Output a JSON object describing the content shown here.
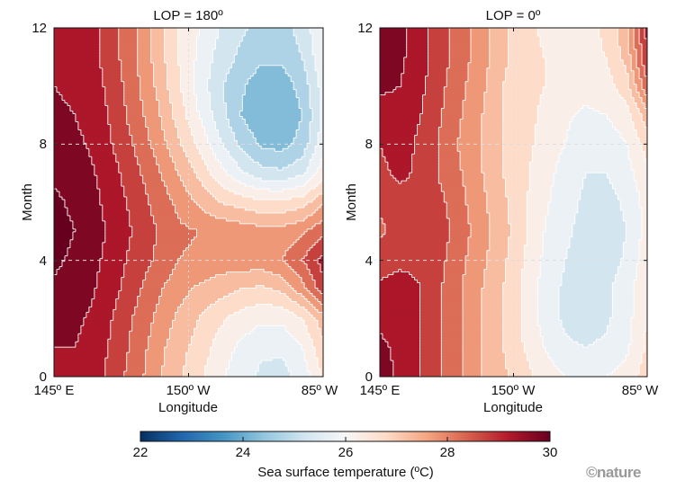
{
  "chart_data": [
    {
      "type": "heatmap",
      "subtype": "filled-contour",
      "title": "LOP = 180º",
      "xlabel": "Longitude",
      "ylabel": "Month",
      "x": [
        145,
        155,
        165,
        175,
        185,
        195,
        205,
        215,
        225,
        235,
        245,
        255,
        265,
        275
      ],
      "y": [
        0,
        1,
        2,
        3,
        4,
        5,
        6,
        7,
        8,
        9,
        10,
        11,
        12
      ],
      "xticks": [
        {
          "value": 145,
          "label": "145º E"
        },
        {
          "value": 210,
          "label": "150º W"
        },
        {
          "value": 275,
          "label": "85º W"
        }
      ],
      "yticks": [
        {
          "value": 0,
          "label": "0"
        },
        {
          "value": 4,
          "label": "4"
        },
        {
          "value": 8,
          "label": "8"
        },
        {
          "value": 12,
          "label": "12"
        }
      ],
      "z": [
        [
          29.4,
          29.4,
          29.2,
          28.7,
          28.2,
          27.6,
          27.1,
          26.6,
          26.1,
          25.7,
          25.4,
          25.3,
          25.7,
          26.6
        ],
        [
          29.5,
          29.5,
          29.3,
          28.8,
          28.3,
          27.7,
          27.2,
          26.8,
          26.3,
          25.9,
          25.6,
          25.6,
          26.0,
          26.9
        ],
        [
          29.7,
          29.6,
          29.4,
          28.9,
          28.4,
          27.9,
          27.4,
          27.0,
          26.6,
          26.3,
          26.1,
          26.1,
          26.5,
          27.3
        ],
        [
          29.9,
          29.8,
          29.5,
          29.1,
          28.6,
          28.1,
          27.7,
          27.4,
          27.2,
          27.0,
          26.9,
          27.1,
          27.8,
          28.8
        ],
        [
          30.1,
          29.9,
          29.6,
          29.2,
          28.8,
          28.4,
          28.0,
          27.9,
          27.8,
          27.8,
          27.8,
          28.0,
          28.5,
          29.2
        ],
        [
          30.2,
          30.0,
          29.7,
          29.3,
          28.9,
          28.5,
          28.1,
          28.0,
          27.9,
          27.8,
          27.7,
          27.7,
          27.9,
          28.4
        ],
        [
          30.1,
          29.9,
          29.6,
          29.2,
          28.8,
          28.3,
          27.9,
          27.4,
          27.0,
          26.8,
          26.6,
          26.6,
          26.8,
          27.4
        ],
        [
          29.9,
          29.8,
          29.5,
          29.1,
          28.6,
          28.1,
          27.5,
          26.9,
          26.2,
          25.6,
          25.2,
          25.1,
          25.4,
          26.3
        ],
        [
          29.7,
          29.6,
          29.4,
          28.9,
          28.4,
          27.8,
          27.1,
          26.4,
          25.6,
          24.9,
          24.4,
          24.3,
          24.7,
          25.8
        ],
        [
          29.6,
          29.5,
          29.3,
          28.8,
          28.2,
          27.6,
          26.8,
          26.0,
          25.2,
          24.5,
          24.1,
          24.0,
          24.5,
          25.6
        ],
        [
          29.5,
          29.4,
          29.2,
          28.7,
          28.1,
          27.4,
          26.6,
          25.8,
          25.1,
          24.6,
          24.2,
          24.2,
          24.7,
          25.7
        ],
        [
          29.3,
          29.3,
          29.1,
          28.6,
          28.0,
          27.3,
          26.5,
          25.9,
          25.3,
          24.9,
          24.6,
          24.6,
          25.0,
          25.9
        ],
        [
          29.3,
          29.3,
          29.1,
          28.6,
          28.0,
          27.3,
          26.5,
          26.0,
          25.5,
          25.1,
          24.8,
          24.8,
          25.2,
          26.0
        ]
      ]
    },
    {
      "type": "heatmap",
      "subtype": "filled-contour",
      "title": "LOP = 0º",
      "xlabel": "Longitude",
      "ylabel": "Month",
      "x": [
        145,
        155,
        165,
        175,
        185,
        195,
        205,
        215,
        225,
        235,
        245,
        255,
        265,
        275
      ],
      "y": [
        0,
        1,
        2,
        3,
        4,
        5,
        6,
        7,
        8,
        9,
        10,
        11,
        12
      ],
      "xticks": [
        {
          "value": 145,
          "label": "145º E"
        },
        {
          "value": 210,
          "label": "150º W"
        },
        {
          "value": 275,
          "label": "85º W"
        }
      ],
      "yticks": [
        {
          "value": 0,
          "label": "0"
        },
        {
          "value": 4,
          "label": "4"
        },
        {
          "value": 8,
          "label": "8"
        },
        {
          "value": 12,
          "label": "12"
        }
      ],
      "z": [
        [
          29.7,
          29.4,
          29.0,
          28.5,
          28.0,
          27.5,
          27.1,
          26.7,
          26.3,
          26.0,
          25.9,
          26.0,
          26.2,
          26.8
        ],
        [
          29.6,
          29.4,
          29.0,
          28.5,
          28.0,
          27.5,
          27.0,
          26.5,
          26.0,
          25.6,
          25.5,
          25.6,
          25.9,
          26.6
        ],
        [
          29.4,
          29.3,
          29.0,
          28.5,
          28.0,
          27.5,
          27.0,
          26.4,
          25.8,
          25.4,
          25.2,
          25.4,
          25.8,
          26.5
        ],
        [
          29.1,
          29.2,
          29.0,
          28.5,
          28.0,
          27.5,
          27.0,
          26.4,
          25.8,
          25.4,
          25.3,
          25.4,
          25.8,
          26.4
        ],
        [
          28.8,
          28.9,
          28.9,
          28.6,
          28.1,
          27.6,
          27.1,
          26.5,
          25.9,
          25.5,
          25.3,
          25.2,
          25.6,
          26.3
        ],
        [
          28.4,
          28.7,
          28.9,
          28.7,
          28.2,
          27.7,
          27.2,
          26.6,
          26.0,
          25.6,
          25.3,
          25.1,
          25.5,
          26.2
        ],
        [
          28.6,
          28.8,
          28.9,
          28.6,
          28.1,
          27.6,
          27.1,
          26.6,
          26.1,
          25.7,
          25.4,
          25.3,
          25.6,
          26.2
        ],
        [
          28.9,
          29.1,
          28.9,
          28.4,
          28.0,
          27.5,
          27.0,
          26.6,
          26.2,
          25.8,
          25.5,
          25.5,
          25.8,
          26.4
        ],
        [
          29.0,
          29.2,
          28.9,
          28.4,
          27.9,
          27.5,
          27.0,
          26.7,
          26.3,
          26.0,
          25.6,
          25.7,
          26.0,
          26.7
        ],
        [
          29.3,
          29.3,
          29.0,
          28.5,
          28.0,
          27.5,
          27.0,
          26.7,
          26.4,
          26.1,
          25.9,
          26.0,
          26.3,
          27.3
        ],
        [
          29.6,
          29.5,
          29.1,
          28.6,
          28.1,
          27.6,
          27.0,
          26.7,
          26.5,
          26.3,
          26.2,
          26.3,
          26.8,
          28.4
        ],
        [
          29.7,
          29.6,
          29.2,
          28.7,
          28.2,
          27.7,
          27.1,
          26.7,
          26.5,
          26.4,
          26.4,
          26.5,
          27.2,
          29.0
        ],
        [
          29.7,
          29.6,
          29.2,
          28.7,
          28.2,
          27.7,
          27.1,
          26.7,
          26.4,
          26.2,
          26.3,
          26.6,
          27.4,
          29.2
        ]
      ]
    }
  ],
  "colorbar": {
    "label": "Sea surface temperature (ºC)",
    "range": [
      22,
      30
    ],
    "level_step": 0.5,
    "ticks": [
      "22",
      "24",
      "26",
      "28",
      "30"
    ],
    "colors": [
      "#053061",
      "#2166ac",
      "#4393c3",
      "#92c5de",
      "#d1e5f0",
      "#f7f7f7",
      "#fddbc7",
      "#f4a582",
      "#d6604d",
      "#b2182b",
      "#67001f"
    ]
  },
  "credit": "©nature"
}
